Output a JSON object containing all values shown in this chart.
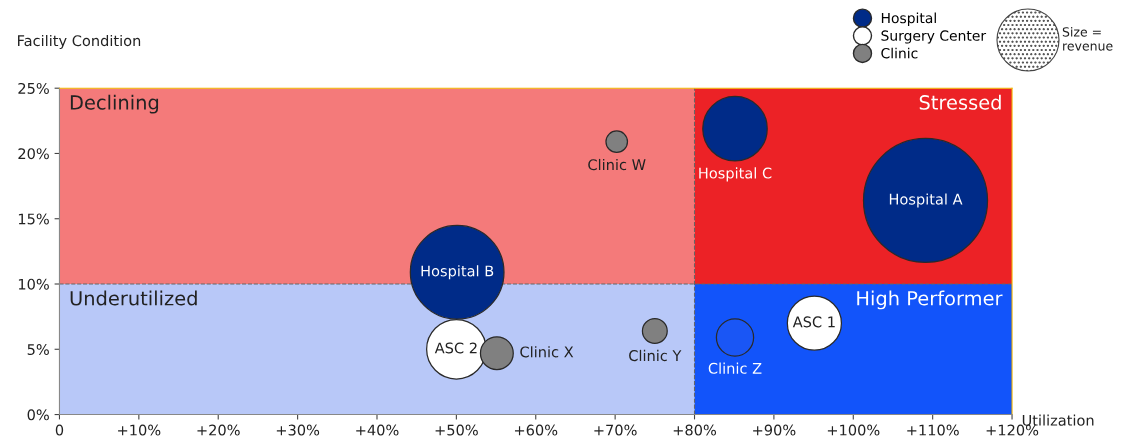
{
  "chart_data": {
    "type": "bubble",
    "xlabel": "Utilization",
    "ylabel": "Facility Condition",
    "xlim": [
      0,
      120
    ],
    "ylim": [
      0,
      25
    ],
    "xticks": [
      0,
      {
        "value": 10,
        "label": "+10%"
      },
      {
        "value": 20,
        "label": "+20%"
      },
      {
        "value": 30,
        "label": "+30%"
      },
      {
        "value": 40,
        "label": "+40%"
      },
      {
        "value": 50,
        "label": "+50%"
      },
      {
        "value": 60,
        "label": "+60%"
      },
      {
        "value": 70,
        "label": "+70%"
      },
      {
        "value": 80,
        "label": "+80%"
      },
      {
        "value": 90,
        "label": "+90%"
      },
      {
        "value": 100,
        "label": "+100%"
      },
      {
        "value": 110,
        "label": "+110%"
      },
      {
        "value": 120,
        "label": "+120%"
      }
    ],
    "yticks": [
      {
        "value": 0,
        "label": "0%"
      },
      {
        "value": 5,
        "label": "5%"
      },
      {
        "value": 10,
        "label": "10%"
      },
      {
        "value": 15,
        "label": "15%"
      },
      {
        "value": 20,
        "label": "20%"
      },
      {
        "value": 25,
        "label": "25%"
      }
    ],
    "series": [
      {
        "name": "Hospital",
        "color": "#002b88",
        "x": [
          109.1,
          50.1,
          85.1
        ],
        "values": [
          16.4,
          10.9,
          21.9
        ],
        "sizes": [
          1,
          0.57,
          0.27
        ]
      },
      {
        "name": "Surgery Center",
        "color": "#ffffff",
        "x": [
          50,
          95.1
        ],
        "values": [
          5.0,
          7.0
        ],
        "sizes": [
          0.23,
          0.19
        ]
      },
      {
        "name": "Clinic",
        "color": "#808080",
        "colors": [
          "#808080",
          "#808080",
          "#808080",
          "#1a56f5"
        ],
        "x": [
          70.2,
          55.1,
          75,
          85.1
        ],
        "values": [
          20.9,
          4.7,
          6.4,
          5.9
        ],
        "sizes": [
          0.03,
          0.07,
          0.04,
          0.09
        ]
      }
    ],
    "bands": [
      {
        "axis": "x",
        "from": 0,
        "to": 80,
        "color": "#f47a7a",
        "label": "Declining"
      },
      {
        "axis": "x",
        "from": 80,
        "to": 120,
        "color": "#ec2226",
        "label": "Stressed"
      },
      {
        "axis": "x",
        "from": 0,
        "to": 80,
        "color": "#b8c8f8",
        "label": "Underutilized"
      },
      {
        "axis": "x",
        "from": 80,
        "to": 120,
        "color": "#1254fa",
        "label": "High Performer"
      }
    ],
    "ref_lines": [
      {
        "axis": "x",
        "value": 80,
        "line_style": "dashed",
        "color": "#666666"
      },
      {
        "axis": "y",
        "value": 10,
        "line_style": "dashed",
        "color": "#666666"
      }
    ],
    "annotations": [
      {
        "text": "Hospital A",
        "x": 109.1,
        "y": 16.4
      },
      {
        "text": "Hospital B",
        "x": 50.1,
        "y": 10.9
      },
      {
        "text": "Hospital C",
        "x": 85.1,
        "y": 21.9
      },
      {
        "text": "Clinic W",
        "x": 70.2,
        "y": 20.9
      },
      {
        "text": "ASC 2",
        "x": 50,
        "y": 5.0
      },
      {
        "text": "Clinic X",
        "x": 55.1,
        "y": 4.7
      },
      {
        "text": "Clinic Y",
        "x": 75,
        "y": 6.4
      },
      {
        "text": "Clinic Z",
        "x": 85.1,
        "y": 5.9
      },
      {
        "text": "ASC 1",
        "x": 95.1,
        "y": 7.0
      },
      "Size =\nrevenue"
    ],
    "legend": "top right",
    "grid": false
  }
}
